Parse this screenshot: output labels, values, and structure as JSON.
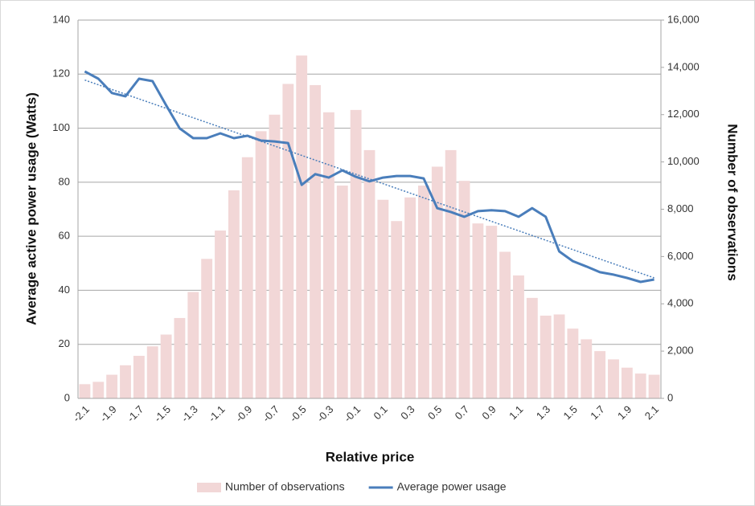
{
  "chart_data": {
    "type": "bar-line",
    "x_label": "Relative price",
    "y_label": "Average active power usage (Watts)",
    "y2_label": "Number of observations",
    "categories": [
      "-2.1",
      null,
      "-1.9",
      null,
      "-1.7",
      null,
      "-1.5",
      null,
      "-1.3",
      null,
      "-1.1",
      null,
      "-0.9",
      null,
      "-0.7",
      null,
      "-0.5",
      null,
      "-0.3",
      null,
      "-0.1",
      null,
      "0.1",
      null,
      "0.3",
      null,
      "0.5",
      null,
      "0.7",
      null,
      "0.9",
      null,
      "1.1",
      null,
      "1.3",
      null,
      "1.5",
      null,
      "1.7",
      null,
      "1.9",
      null,
      "2.1"
    ],
    "series": [
      {
        "name": "Number of observations",
        "type": "bar",
        "axis": "y2",
        "color": "#f2d7d7",
        "values": [
          600,
          700,
          1000,
          1400,
          1800,
          2200,
          2700,
          3400,
          4500,
          5900,
          7100,
          8800,
          10200,
          11300,
          12000,
          13300,
          14500,
          13250,
          12100,
          9000,
          12200,
          10500,
          8400,
          7500,
          8500,
          9000,
          9800,
          10500,
          9200,
          7400,
          7300,
          6200,
          5200,
          4250,
          3500,
          3550,
          2950,
          2500,
          2000,
          1650,
          1300,
          1050,
          1000
        ]
      },
      {
        "name": "Average power usage",
        "type": "line",
        "color": "#4a7ebb",
        "values": [
          121,
          118.3,
          113,
          111.8,
          118.3,
          117.4,
          108.5,
          99.9,
          96.3,
          96.3,
          98.1,
          96.3,
          97.2,
          95.4,
          95.1,
          94.5,
          79,
          83,
          81.7,
          84.4,
          82,
          80.3,
          81.7,
          82.3,
          82.3,
          81.4,
          70.4,
          69,
          67.2,
          69.3,
          69.6,
          69.3,
          67.2,
          70.4,
          67.2,
          54.4,
          50.8,
          48.8,
          46.7,
          45.8,
          44.6,
          43.1,
          44
        ]
      }
    ],
    "trendline": {
      "color": "#4a7ebb",
      "start": 117.8,
      "end": 44.6
    },
    "ylim": [
      0,
      140
    ],
    "yticks": [
      0,
      20,
      40,
      60,
      80,
      100,
      120,
      140
    ],
    "y2lim": [
      0,
      16000
    ],
    "y2ticks": [
      0,
      {
        "value": 2000,
        "label": "2,000"
      },
      {
        "value": 4000,
        "label": "4,000"
      },
      {
        "value": 6000,
        "label": "6,000"
      },
      {
        "value": 8000,
        "label": "8,000"
      },
      {
        "value": 10000,
        "label": "10,000"
      },
      {
        "value": 12000,
        "label": "12,000"
      },
      {
        "value": 14000,
        "label": "14,000"
      },
      {
        "value": 16000,
        "label": "16,000"
      }
    ],
    "grid": true,
    "legend": "bottom"
  }
}
